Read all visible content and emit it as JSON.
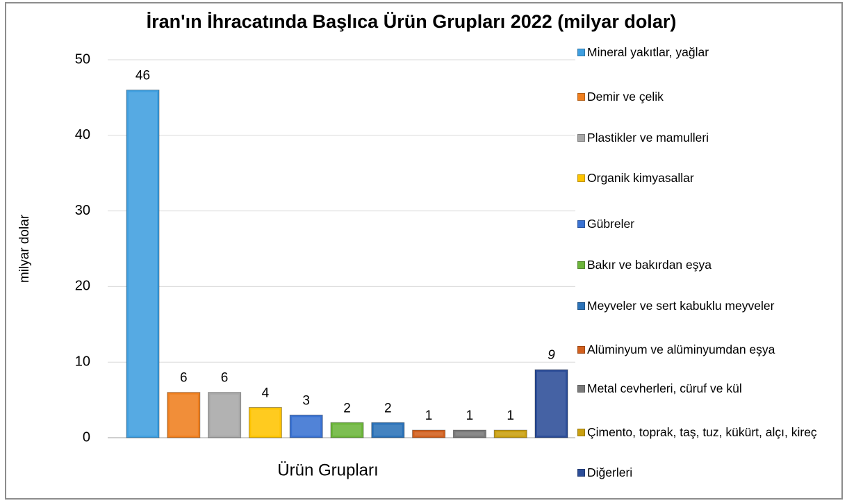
{
  "chart_data": {
    "type": "bar",
    "title": "İran'ın İhracatında Başlıca Ürün Grupları 2022 (milyar dolar)",
    "y_label": "milyar dolar",
    "x_label": "Ürün Grupları",
    "categories": [
      null
    ],
    "series": [
      {
        "name": "Mineral yakıtlar, yağlar",
        "color": "#3f9fe0",
        "values": [
          46
        ]
      },
      {
        "name": "Demir ve çelik",
        "color": "#f07f1e",
        "values": [
          6
        ]
      },
      {
        "name": "Plastikler ve mamulleri",
        "color": "#a8a8a8",
        "values": [
          6
        ]
      },
      {
        "name": "Organik kimyasallar",
        "color": "#ffc400",
        "values": [
          4
        ]
      },
      {
        "name": "Gübreler",
        "color": "#3a72d2",
        "values": [
          3
        ]
      },
      {
        "name": "Bakır ve bakırdan eşya",
        "color": "#6cb53b",
        "values": [
          2
        ]
      },
      {
        "name": "Meyveler ve sert kabuklu meyveler",
        "color": "#2b72b8",
        "values": [
          2
        ]
      },
      {
        "name": "Alüminyum ve alüminyumdan eşya",
        "color": "#d2601e",
        "values": [
          1
        ]
      },
      {
        "name": "Metal cevherleri, cüruf ve kül",
        "color": "#7a7a7a",
        "values": [
          1
        ]
      },
      {
        "name": "Çimento, toprak, taş, tuz, kükürt, alçı, kireç",
        "color": "#caa011",
        "values": [
          1
        ]
      },
      {
        "name": "Diğerleri",
        "color": "#2c4d98",
        "values": [
          9
        ]
      }
    ],
    "ylim": [
      0,
      50
    ],
    "yticks": [
      0,
      10,
      20,
      30,
      40,
      50
    ],
    "grid": true,
    "legend": "right"
  }
}
